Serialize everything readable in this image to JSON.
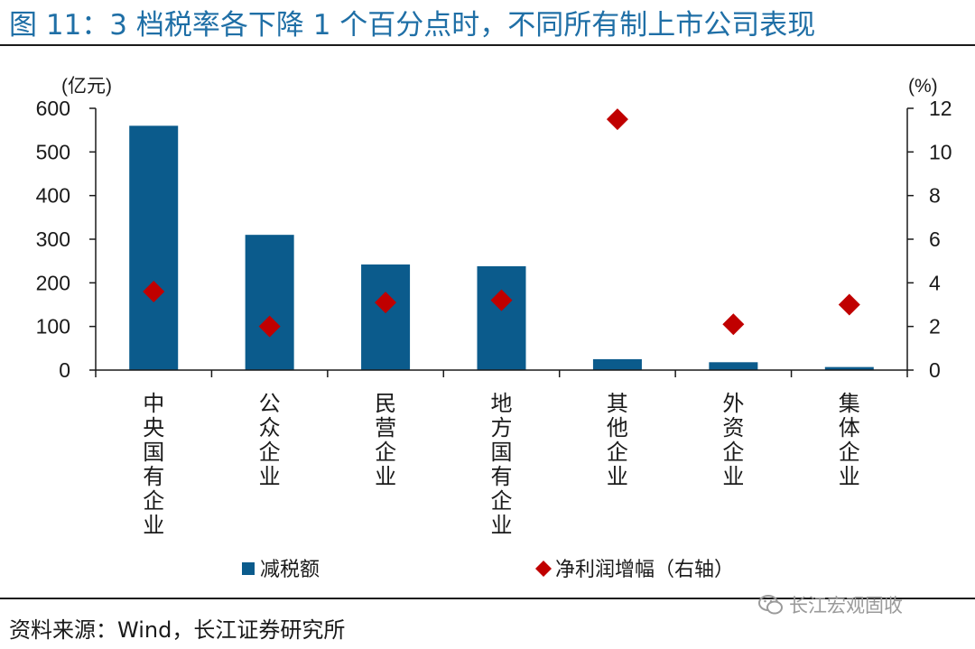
{
  "figure": {
    "title": "图 11：3 档税率各下降 1 个百分点时，不同所有制上市公司表现",
    "source": "资料来源：Wind，长江证券研究所",
    "watermark": "长江宏观固收",
    "watermark_icon": "wechat-icon"
  },
  "colors": {
    "title": "#1f6fa6",
    "bar": "#0b5b8c",
    "marker": "#c00000"
  },
  "chart_data": {
    "type": "bar",
    "title": "3 档税率各下降 1 个百分点时，不同所有制上市公司表现",
    "categories": [
      "中央国有企业",
      "公众企业",
      "民营企业",
      "地方国有企业",
      "其他企业",
      "外资企业",
      "集体企业"
    ],
    "series": [
      {
        "name": "减税额",
        "type": "bar",
        "axis": "left",
        "values": [
          560,
          310,
          242,
          238,
          25,
          18,
          7
        ]
      },
      {
        "name": "净利润增幅（右轴）",
        "type": "scatter",
        "marker": "diamond",
        "axis": "right",
        "values": [
          3.6,
          2.0,
          3.1,
          3.2,
          11.5,
          2.1,
          3.0
        ]
      }
    ],
    "left_axis": {
      "label": "(亿元)",
      "min": 0,
      "max": 600,
      "ticks": [
        0,
        100,
        200,
        300,
        400,
        500,
        600
      ]
    },
    "right_axis": {
      "label": "(%)",
      "min": 0,
      "max": 12,
      "ticks": [
        0,
        2,
        4,
        6,
        8,
        10,
        12
      ]
    },
    "legend": {
      "position": "bottom",
      "entries": [
        "减税额",
        "净利润增幅（右轴）"
      ]
    },
    "grid": false
  }
}
